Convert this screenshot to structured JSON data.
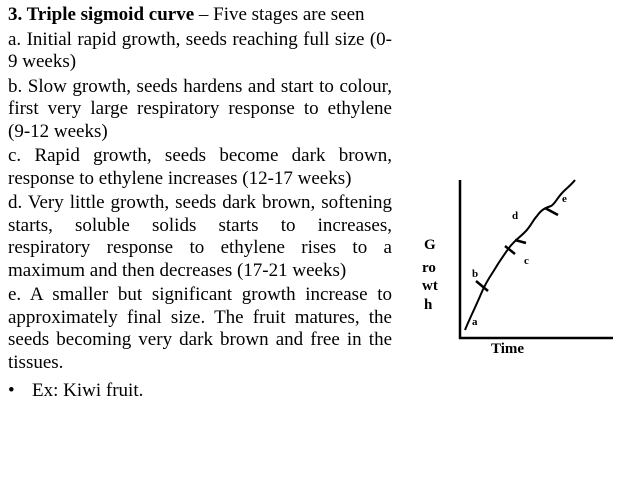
{
  "heading": {
    "bold": "3. Triple sigmoid curve",
    "rest": " – Five stages are seen"
  },
  "stages": [
    "a. Initial rapid growth, seeds reaching full size (0-9 weeks)",
    "b. Slow growth, seeds hardens and start to colour, first very large respiratory response to ethylene (9-12 weeks)",
    "c. Rapid growth, seeds become dark brown, response to ethylene increases (12-17 weeks)",
    "d. Very little growth, seeds dark brown, softening starts, soluble solids starts to increases, respiratory response to ethylene rises to a maximum and then decreases (17-21 weeks)",
    "e. A smaller but significant growth increase to approximately final size. The fruit matures, the seeds becoming very dark brown and free in the tissues."
  ],
  "example": {
    "bullet": "•",
    "text": "Ex: Kiwi fruit."
  },
  "diagram": {
    "y_axis_label": [
      "G",
      "ro",
      "wt",
      "h"
    ],
    "x_axis_label": "Time",
    "stage_labels": [
      "a",
      "b",
      "c",
      "d",
      "e"
    ]
  }
}
